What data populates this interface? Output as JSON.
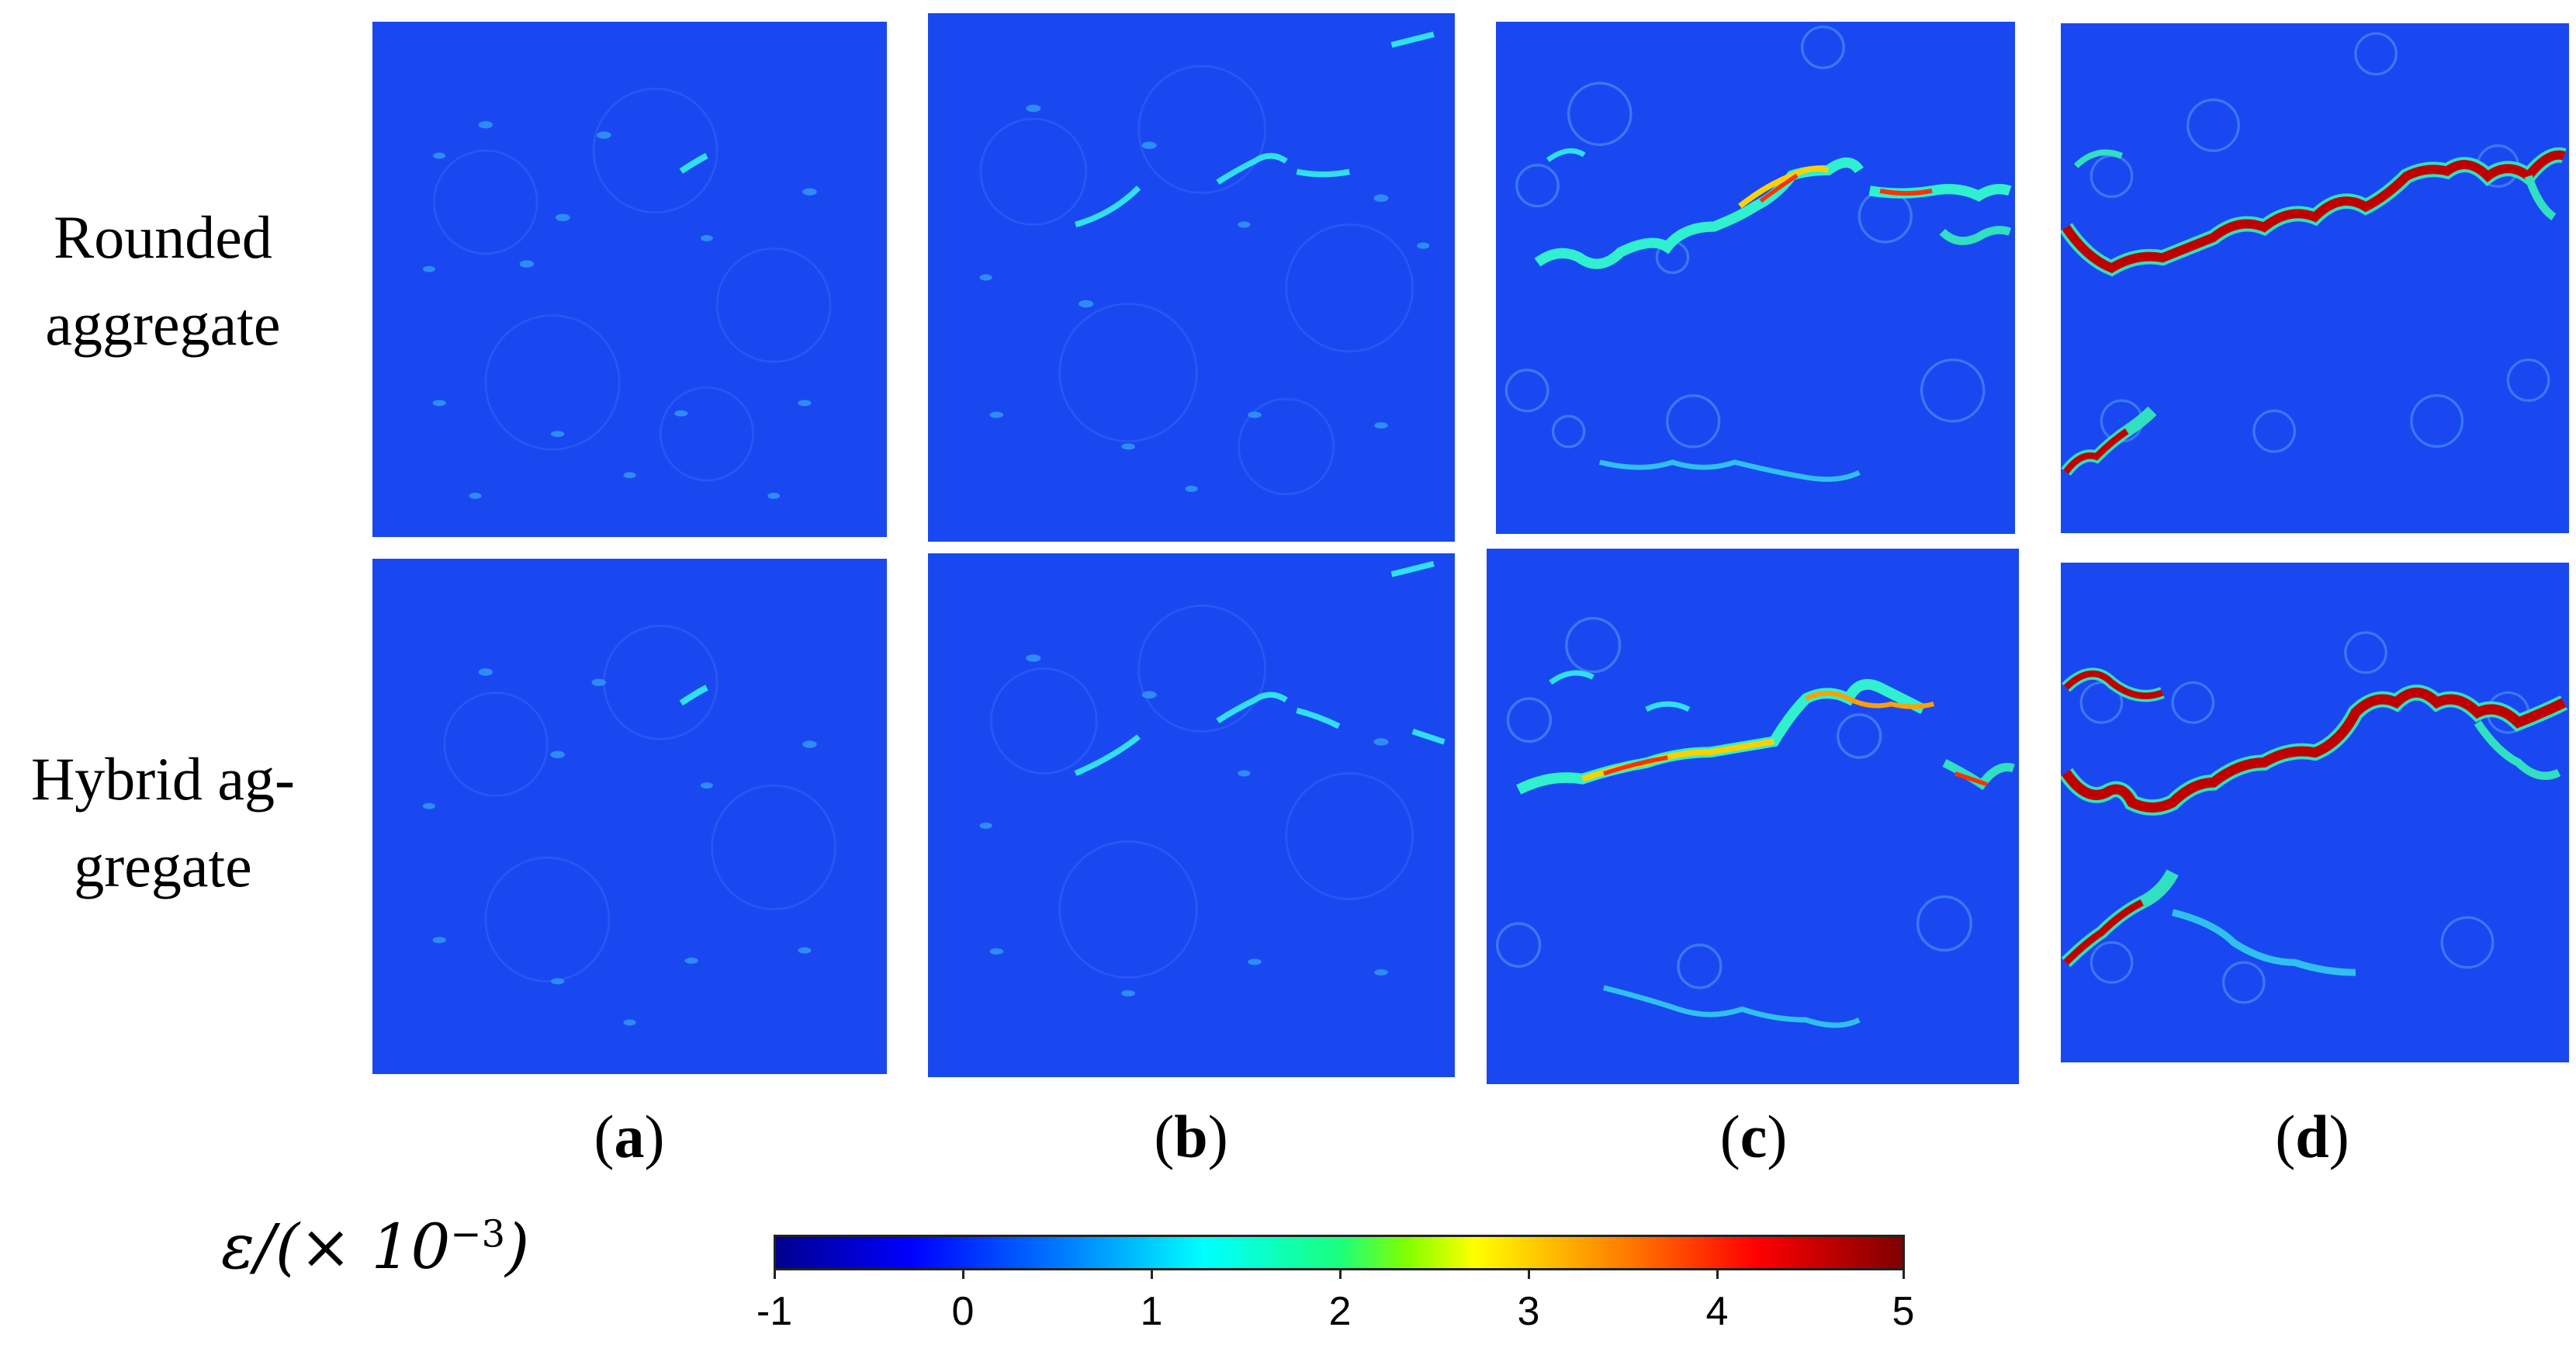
{
  "rows": [
    {
      "line1": "Rounded",
      "line2": "aggregate"
    },
    {
      "line1": "Hybrid ag-",
      "line2": "gregate"
    }
  ],
  "columns": [
    {
      "paren_open": "(",
      "letter": "a",
      "paren_close": ")"
    },
    {
      "paren_open": "(",
      "letter": "b",
      "paren_close": ")"
    },
    {
      "paren_open": "(",
      "letter": "c",
      "paren_close": ")"
    },
    {
      "paren_open": "(",
      "letter": "d",
      "paren_close": ")"
    }
  ],
  "colorbar": {
    "label_main": "ε/(× 10",
    "label_exp": "−3",
    "label_close": ")",
    "ticks": [
      "-1",
      "0",
      "1",
      "2",
      "3",
      "4",
      "5"
    ],
    "colors": {
      "background_field": "#1a48f0",
      "low": "#00008f",
      "high": "#800000"
    }
  }
}
